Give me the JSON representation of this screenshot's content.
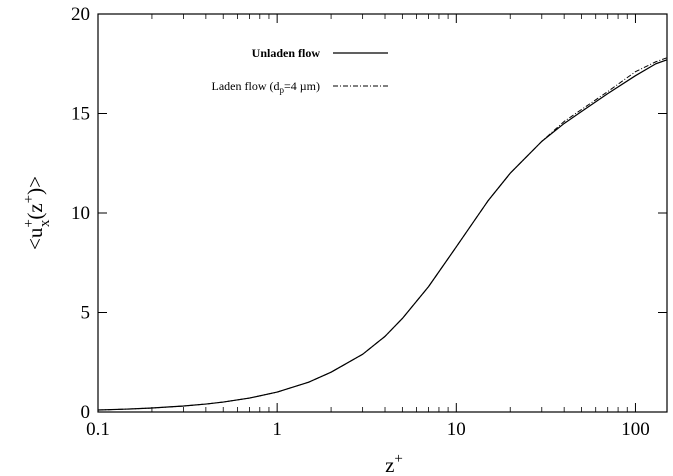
{
  "chart_data": {
    "type": "line",
    "title": "",
    "xlabel_main": "z",
    "xlabel_sup": "+",
    "ylabel_pre": "<u",
    "ylabel_sup1": "+",
    "ylabel_sub": "x",
    "ylabel_mid": "(z",
    "ylabel_sup2": "+",
    "ylabel_post": ")>",
    "x_scale": "log",
    "xlim": [
      0.1,
      150
    ],
    "ylim": [
      0,
      20
    ],
    "x_ticks": [
      0.1,
      1,
      10,
      100
    ],
    "x_tick_labels": [
      "0.1",
      "1",
      "10",
      "100"
    ],
    "y_ticks": [
      0,
      5,
      10,
      15,
      20
    ],
    "y_tick_labels": [
      "0",
      "5",
      "10",
      "15",
      "20"
    ],
    "grid": false,
    "legend_position": "top-center",
    "series": [
      {
        "name": "Unladen flow",
        "style": "solid",
        "x": [
          0.1,
          0.15,
          0.2,
          0.3,
          0.4,
          0.5,
          0.7,
          1.0,
          1.5,
          2.0,
          3.0,
          4.0,
          5.0,
          7.0,
          10.0,
          15.0,
          20.0,
          30.0,
          40.0,
          50.0,
          70.0,
          100.0,
          130.0,
          150.0
        ],
        "y": [
          0.1,
          0.15,
          0.2,
          0.3,
          0.4,
          0.5,
          0.7,
          1.0,
          1.5,
          2.0,
          2.9,
          3.8,
          4.7,
          6.3,
          8.3,
          10.6,
          12.0,
          13.6,
          14.5,
          15.1,
          16.0,
          16.9,
          17.5,
          17.7
        ]
      },
      {
        "name_pre": "Laden flow (d",
        "name_sub": "p",
        "name_post": "=4 µm)",
        "style": "dash-dot",
        "x": [
          0.1,
          0.15,
          0.2,
          0.3,
          0.4,
          0.5,
          0.7,
          1.0,
          1.5,
          2.0,
          3.0,
          4.0,
          5.0,
          7.0,
          10.0,
          15.0,
          20.0,
          30.0,
          40.0,
          50.0,
          70.0,
          100.0,
          130.0,
          150.0
        ],
        "y": [
          0.1,
          0.15,
          0.2,
          0.3,
          0.4,
          0.5,
          0.7,
          1.0,
          1.5,
          2.0,
          2.9,
          3.8,
          4.7,
          6.3,
          8.3,
          10.6,
          12.0,
          13.6,
          14.6,
          15.2,
          16.1,
          17.1,
          17.6,
          17.8
        ]
      }
    ]
  }
}
